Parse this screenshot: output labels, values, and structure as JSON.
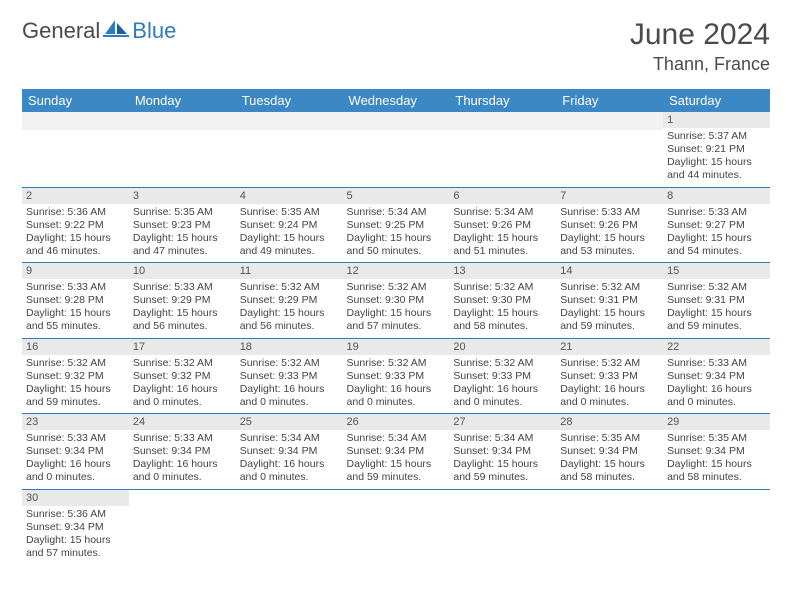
{
  "brand": {
    "general": "General",
    "blue": "Blue"
  },
  "title": "June 2024",
  "location": "Thann, France",
  "colors": {
    "header_bg": "#3b88c4",
    "header_text": "#ffffff",
    "row_divider": "#2f7bbf",
    "daynum_bg": "#e9e9e9",
    "logo_blue": "#2f7bbf",
    "text": "#4a4a4a"
  },
  "day_headers": [
    "Sunday",
    "Monday",
    "Tuesday",
    "Wednesday",
    "Thursday",
    "Friday",
    "Saturday"
  ],
  "weeks": [
    [
      null,
      null,
      null,
      null,
      null,
      null,
      {
        "n": "1",
        "sunrise": "5:37 AM",
        "sunset": "9:21 PM",
        "daylight": "15 hours and 44 minutes."
      }
    ],
    [
      {
        "n": "2",
        "sunrise": "5:36 AM",
        "sunset": "9:22 PM",
        "daylight": "15 hours and 46 minutes."
      },
      {
        "n": "3",
        "sunrise": "5:35 AM",
        "sunset": "9:23 PM",
        "daylight": "15 hours and 47 minutes."
      },
      {
        "n": "4",
        "sunrise": "5:35 AM",
        "sunset": "9:24 PM",
        "daylight": "15 hours and 49 minutes."
      },
      {
        "n": "5",
        "sunrise": "5:34 AM",
        "sunset": "9:25 PM",
        "daylight": "15 hours and 50 minutes."
      },
      {
        "n": "6",
        "sunrise": "5:34 AM",
        "sunset": "9:26 PM",
        "daylight": "15 hours and 51 minutes."
      },
      {
        "n": "7",
        "sunrise": "5:33 AM",
        "sunset": "9:26 PM",
        "daylight": "15 hours and 53 minutes."
      },
      {
        "n": "8",
        "sunrise": "5:33 AM",
        "sunset": "9:27 PM",
        "daylight": "15 hours and 54 minutes."
      }
    ],
    [
      {
        "n": "9",
        "sunrise": "5:33 AM",
        "sunset": "9:28 PM",
        "daylight": "15 hours and 55 minutes."
      },
      {
        "n": "10",
        "sunrise": "5:33 AM",
        "sunset": "9:29 PM",
        "daylight": "15 hours and 56 minutes."
      },
      {
        "n": "11",
        "sunrise": "5:32 AM",
        "sunset": "9:29 PM",
        "daylight": "15 hours and 56 minutes."
      },
      {
        "n": "12",
        "sunrise": "5:32 AM",
        "sunset": "9:30 PM",
        "daylight": "15 hours and 57 minutes."
      },
      {
        "n": "13",
        "sunrise": "5:32 AM",
        "sunset": "9:30 PM",
        "daylight": "15 hours and 58 minutes."
      },
      {
        "n": "14",
        "sunrise": "5:32 AM",
        "sunset": "9:31 PM",
        "daylight": "15 hours and 59 minutes."
      },
      {
        "n": "15",
        "sunrise": "5:32 AM",
        "sunset": "9:31 PM",
        "daylight": "15 hours and 59 minutes."
      }
    ],
    [
      {
        "n": "16",
        "sunrise": "5:32 AM",
        "sunset": "9:32 PM",
        "daylight": "15 hours and 59 minutes."
      },
      {
        "n": "17",
        "sunrise": "5:32 AM",
        "sunset": "9:32 PM",
        "daylight": "16 hours and 0 minutes."
      },
      {
        "n": "18",
        "sunrise": "5:32 AM",
        "sunset": "9:33 PM",
        "daylight": "16 hours and 0 minutes."
      },
      {
        "n": "19",
        "sunrise": "5:32 AM",
        "sunset": "9:33 PM",
        "daylight": "16 hours and 0 minutes."
      },
      {
        "n": "20",
        "sunrise": "5:32 AM",
        "sunset": "9:33 PM",
        "daylight": "16 hours and 0 minutes."
      },
      {
        "n": "21",
        "sunrise": "5:32 AM",
        "sunset": "9:33 PM",
        "daylight": "16 hours and 0 minutes."
      },
      {
        "n": "22",
        "sunrise": "5:33 AM",
        "sunset": "9:34 PM",
        "daylight": "16 hours and 0 minutes."
      }
    ],
    [
      {
        "n": "23",
        "sunrise": "5:33 AM",
        "sunset": "9:34 PM",
        "daylight": "16 hours and 0 minutes."
      },
      {
        "n": "24",
        "sunrise": "5:33 AM",
        "sunset": "9:34 PM",
        "daylight": "16 hours and 0 minutes."
      },
      {
        "n": "25",
        "sunrise": "5:34 AM",
        "sunset": "9:34 PM",
        "daylight": "16 hours and 0 minutes."
      },
      {
        "n": "26",
        "sunrise": "5:34 AM",
        "sunset": "9:34 PM",
        "daylight": "15 hours and 59 minutes."
      },
      {
        "n": "27",
        "sunrise": "5:34 AM",
        "sunset": "9:34 PM",
        "daylight": "15 hours and 59 minutes."
      },
      {
        "n": "28",
        "sunrise": "5:35 AM",
        "sunset": "9:34 PM",
        "daylight": "15 hours and 58 minutes."
      },
      {
        "n": "29",
        "sunrise": "5:35 AM",
        "sunset": "9:34 PM",
        "daylight": "15 hours and 58 minutes."
      }
    ],
    [
      {
        "n": "30",
        "sunrise": "5:36 AM",
        "sunset": "9:34 PM",
        "daylight": "15 hours and 57 minutes."
      },
      null,
      null,
      null,
      null,
      null,
      null
    ]
  ],
  "labels": {
    "sunrise": "Sunrise: ",
    "sunset": "Sunset: ",
    "daylight": "Daylight: "
  }
}
